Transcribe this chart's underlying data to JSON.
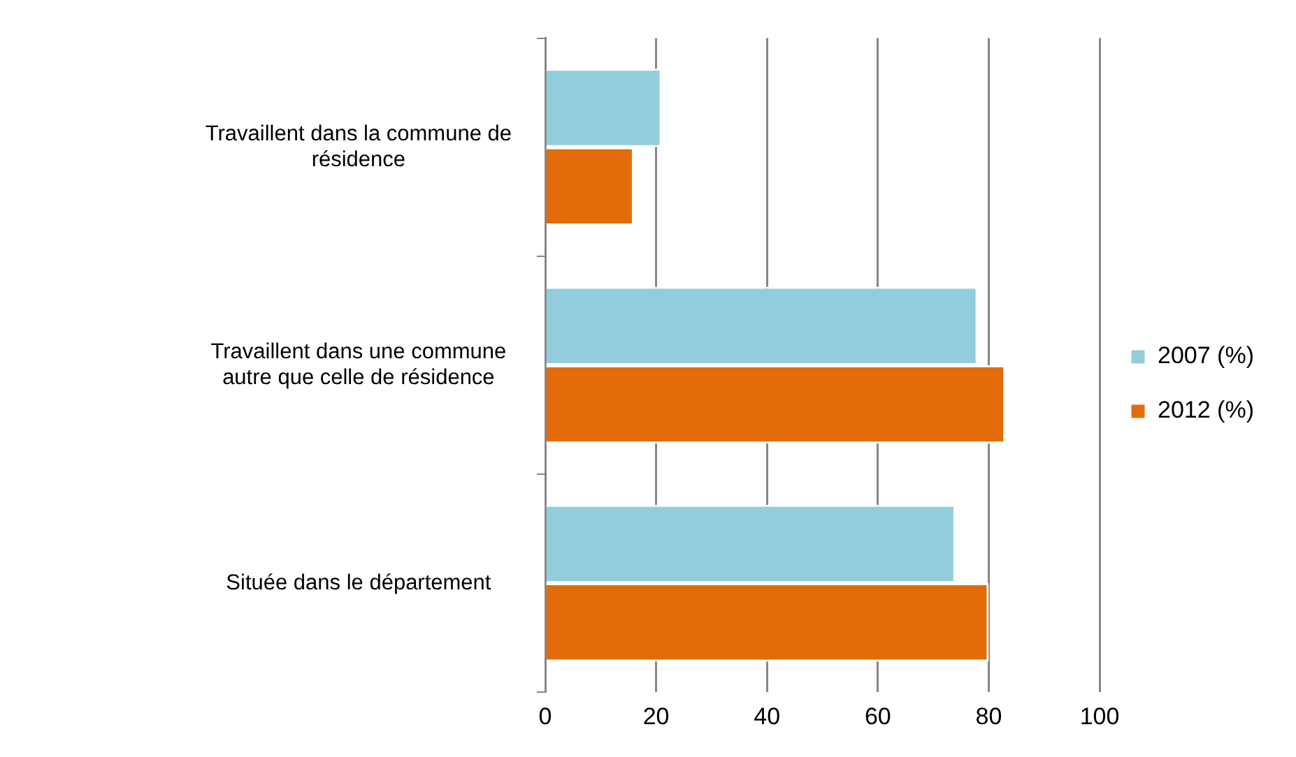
{
  "chart_data": {
    "type": "bar",
    "orientation": "horizontal",
    "categories": [
      "Travaillent dans la commune de résidence",
      "Travaillent dans une commune autre que celle de résidence",
      "Située dans le département"
    ],
    "series": [
      {
        "name": "2007 (%)",
        "color": "#92cddc",
        "values": [
          21,
          78,
          74
        ]
      },
      {
        "name": "2012 (%)",
        "color": "#e36c09",
        "values": [
          16,
          83,
          80
        ]
      }
    ],
    "xlim": [
      0,
      100
    ],
    "xticks": [
      0,
      20,
      40,
      60,
      80,
      100
    ],
    "grid": "x",
    "legend": "right"
  }
}
